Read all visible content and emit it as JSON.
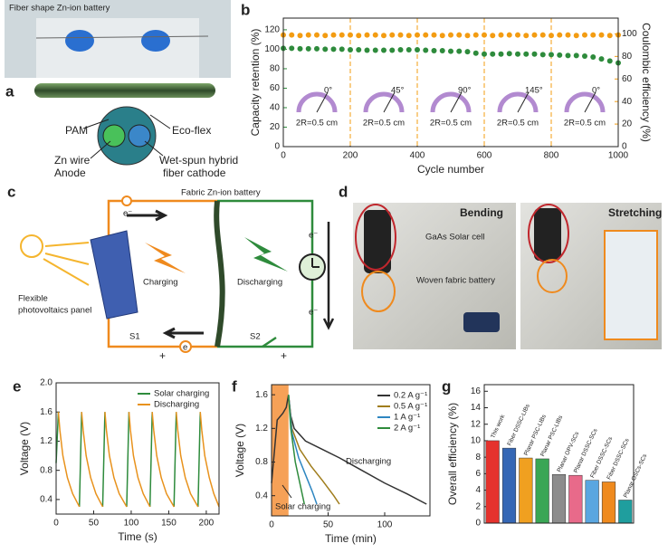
{
  "panel_labels": [
    "a",
    "b",
    "c",
    "d",
    "e",
    "f",
    "g"
  ],
  "panel_a": {
    "title": "Fiber shape Zn-ion battery",
    "labels": [
      "PAM",
      "Eco-flex",
      "Zn wire",
      "Anode",
      "Wet-spun hybrid",
      "fiber cathode"
    ]
  },
  "panel_c": {
    "title": "Fabric Zn-ion battery",
    "labels": [
      "Flexible",
      "photovoltaics panel",
      "Charging",
      "Discharging",
      "S1",
      "S2"
    ],
    "electron": "e⁻",
    "electron_bottom": "e",
    "plus": "+"
  },
  "panel_d": {
    "labels": [
      "Bending",
      "Stretching",
      "GaAs Solar cell",
      "Woven fabric battery"
    ]
  },
  "chart_data": [
    {
      "type": "scatter",
      "xlabel": "Cycle number",
      "ylabel": "Capacity retention (%)",
      "y2label": "Coulombic efficiency (%)",
      "xlim": [
        0,
        1000
      ],
      "xticks": [
        0,
        200,
        400,
        600,
        800,
        1000
      ],
      "ylim": [
        0,
        132
      ],
      "yticks": [
        0,
        20,
        40,
        60,
        80,
        100,
        120
      ],
      "y2lim": [
        0,
        114
      ],
      "y2ticks": [
        0,
        20,
        40,
        60,
        80,
        100
      ],
      "vlines": [
        200,
        400,
        600,
        800
      ],
      "insets": {
        "angles": [
          "0°",
          "45°",
          "90°",
          "145°",
          "0°"
        ],
        "labels": [
          "2R=0.5 cm",
          "2R=0.5 cm",
          "2R=0.5 cm",
          "2R=0.5 cm",
          "2R=0.5 cm"
        ]
      },
      "x": [
        0,
        25,
        50,
        75,
        100,
        125,
        150,
        175,
        200,
        225,
        250,
        275,
        300,
        325,
        350,
        375,
        400,
        425,
        450,
        475,
        500,
        525,
        550,
        575,
        600,
        625,
        650,
        675,
        700,
        725,
        750,
        775,
        800,
        825,
        850,
        875,
        900,
        925,
        950,
        975,
        1000
      ],
      "series": [
        {
          "color": "#2e8b3c",
          "values": [
            101,
            101,
            100.5,
            100.5,
            100.5,
            100,
            100,
            100,
            99.5,
            99.5,
            99,
            99,
            99,
            99,
            99.5,
            99.5,
            99.5,
            99,
            98.5,
            98.5,
            98,
            98,
            97.5,
            96,
            95,
            95,
            95,
            95.5,
            95,
            95,
            95,
            94.5,
            94.5,
            94,
            93.5,
            93.5,
            93,
            92,
            90,
            88,
            86
          ]
        },
        {
          "color": "#f39c12",
          "axis": "y2",
          "values": [
            99,
            99,
            98.5,
            99,
            99,
            98.5,
            99,
            99,
            99,
            98.5,
            99,
            99,
            98.5,
            99,
            99,
            98.5,
            99,
            99,
            99,
            98.5,
            99,
            99,
            98.5,
            99,
            99,
            98.5,
            99,
            99,
            99,
            98.5,
            99,
            99,
            98.5,
            99,
            99,
            98.5,
            99,
            99,
            99,
            98.5,
            99
          ]
        }
      ]
    },
    {
      "type": "line",
      "xlabel": "Time (s)",
      "ylabel": "Voltage (V)",
      "legend": "upper right",
      "xlim": [
        0,
        217
      ],
      "xticks": [
        0,
        50,
        100,
        150,
        200
      ],
      "ylim": [
        0.2,
        2.0
      ],
      "yticks": [
        0.4,
        0.8,
        1.2,
        1.6,
        {
          "value": 2,
          "label": "2.0"
        }
      ],
      "series": [
        {
          "name": "Solar charging",
          "color": "#2e8b3c",
          "x": [
            0,
            3,
            null,
            31,
            34,
            null,
            62,
            65,
            null,
            94,
            97,
            null,
            125,
            128,
            null,
            157,
            160,
            null,
            189,
            192
          ],
          "values": [
            0.9,
            1.6,
            null,
            0.3,
            1.6,
            null,
            0.3,
            1.6,
            null,
            0.3,
            1.6,
            null,
            0.3,
            1.6,
            null,
            0.3,
            1.6,
            null,
            0.3,
            1.6
          ]
        },
        {
          "name": "Discharging",
          "color": "#e8921c",
          "x": [
            3,
            5,
            9,
            15,
            22,
            31,
            null,
            34,
            36,
            40,
            46,
            53,
            62,
            null,
            65,
            67,
            71,
            77,
            84,
            94,
            null,
            97,
            99,
            103,
            109,
            116,
            125,
            null,
            128,
            130,
            134,
            140,
            147,
            157,
            null,
            160,
            162,
            166,
            172,
            179,
            189,
            null,
            192,
            194,
            198,
            204,
            210,
            217
          ],
          "values": [
            1.6,
            1.35,
            1.0,
            0.7,
            0.48,
            0.3,
            null,
            1.6,
            1.35,
            1.0,
            0.7,
            0.48,
            0.3,
            null,
            1.6,
            1.35,
            1.0,
            0.7,
            0.48,
            0.3,
            null,
            1.6,
            1.35,
            1.0,
            0.7,
            0.48,
            0.3,
            null,
            1.6,
            1.35,
            1.0,
            0.7,
            0.48,
            0.3,
            null,
            1.6,
            1.35,
            1.0,
            0.7,
            0.48,
            0.3,
            null,
            1.6,
            1.35,
            1.0,
            0.7,
            0.48,
            0.3
          ]
        }
      ]
    },
    {
      "type": "line",
      "xlabel": "Time (min)",
      "ylabel": "Voltage (V)",
      "legend": "upper right",
      "xlim": [
        0,
        140
      ],
      "xticks": [
        0,
        50,
        100
      ],
      "ylim": [
        0.16,
        1.72
      ],
      "yticks": [
        0.4,
        0.8,
        1.2,
        1.6
      ],
      "shade": [
        0,
        15
      ],
      "shade_color": "#f5913a",
      "annotations": [
        "Discharging",
        "Solar charging"
      ],
      "series": [
        {
          "name": "0.2 A g⁻¹",
          "color": "#333333",
          "x": [
            0,
            5,
            10,
            13,
            15,
            17,
            20,
            30,
            45,
            60,
            80,
            100,
            120,
            137
          ],
          "values": [
            0.55,
            1.3,
            1.38,
            1.45,
            1.6,
            1.35,
            1.2,
            1.05,
            0.95,
            0.85,
            0.7,
            0.55,
            0.42,
            0.3
          ]
        },
        {
          "name": "0.5 A g⁻¹",
          "color": "#a07d1c",
          "x": [
            15,
            18,
            25,
            35,
            45,
            55,
            60
          ],
          "values": [
            1.6,
            1.2,
            0.95,
            0.75,
            0.58,
            0.4,
            0.3
          ]
        },
        {
          "name": "1 A g⁻¹",
          "color": "#2e86c1",
          "x": [
            15,
            18,
            24,
            30,
            36,
            40
          ],
          "values": [
            1.6,
            1.15,
            0.85,
            0.65,
            0.45,
            0.3
          ]
        },
        {
          "name": "2 A g⁻¹",
          "color": "#2e8b3c",
          "x": [
            15,
            17,
            21,
            25,
            29
          ],
          "values": [
            1.6,
            1.2,
            0.8,
            0.55,
            0.3
          ]
        }
      ]
    },
    {
      "type": "bar",
      "ylabel": "Overall efficiency (%)",
      "ylim": [
        0,
        16.8
      ],
      "yticks": [
        0,
        2,
        4,
        6,
        8,
        10,
        12,
        14,
        16
      ],
      "categories": [
        "This work",
        "Fiber DSSC-LIBs",
        "Planar PSC-LIBs",
        "Planar PSC-LIBs",
        "Planar OPV-SCs",
        "Planar DSSC-SCs",
        "Fiber DSSC-SCs",
        "Fiber DSSC-SCs",
        "Planar OSCs-SCs"
      ],
      "values": [
        10,
        9.1,
        7.9,
        7.8,
        5.9,
        5.8,
        5.2,
        5.0,
        2.8
      ],
      "colors": [
        "#e5322d",
        "#3567b5",
        "#f0a020",
        "#3aa655",
        "#8c8c8c",
        "#e86a8a",
        "#5aa6e0",
        "#ef8a1e",
        "#1f9e9e"
      ]
    }
  ]
}
